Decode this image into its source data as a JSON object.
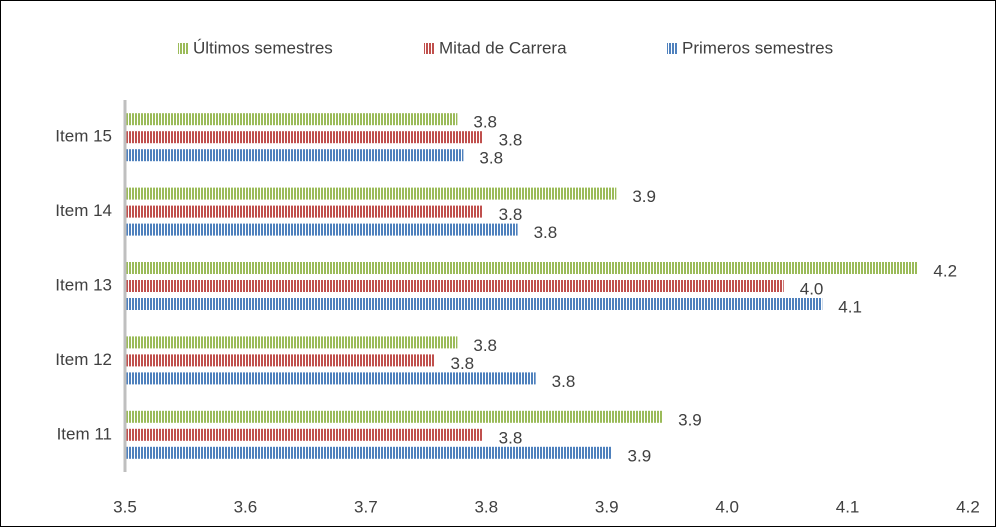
{
  "chart_data": {
    "type": "bar",
    "orientation": "horizontal",
    "categories": [
      "Item 11",
      "Item 12",
      "Item 13",
      "Item 14",
      "Item 15"
    ],
    "series": [
      {
        "name": "Últimos semestres",
        "color": "#9bbb59",
        "values": [
          3.946,
          3.776,
          4.158,
          3.908,
          3.776
        ],
        "value_labels": [
          "3.9",
          "3.8",
          "4.2",
          "3.9",
          "3.8"
        ]
      },
      {
        "name": "Mitad de Carrera",
        "color": "#c0504d",
        "values": [
          3.797,
          3.757,
          4.047,
          3.797,
          3.797
        ],
        "value_labels": [
          "3.8",
          "3.8",
          "4.0",
          "3.8",
          "3.8"
        ]
      },
      {
        "name": "Primeros semestres",
        "color": "#4f81bd",
        "values": [
          3.904,
          3.841,
          4.079,
          3.826,
          3.781
        ],
        "value_labels": [
          "3.9",
          "3.8",
          "4.1",
          "3.8",
          "3.8"
        ]
      }
    ],
    "xlim": [
      3.5,
      4.2
    ],
    "xticks": [
      3.5,
      3.6,
      3.7,
      3.8,
      3.9,
      {
        "value": 4.0,
        "label": "4.0"
      },
      4.1,
      4.2
    ],
    "legend": "top",
    "grid": false
  }
}
